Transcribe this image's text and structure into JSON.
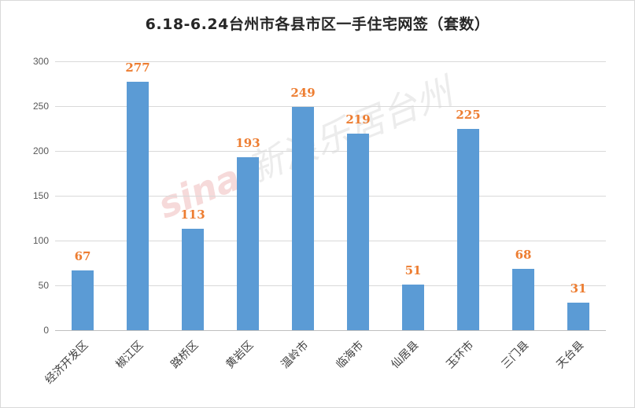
{
  "chart_data": {
    "type": "bar",
    "title": "6.18-6.24台州市各县市区一手住宅网签（套数）",
    "categories": [
      "经济开发区",
      "椒江区",
      "路桥区",
      "黄岩区",
      "温岭市",
      "临海市",
      "仙居县",
      "玉环市",
      "三门县",
      "天台县"
    ],
    "values": [
      67,
      277,
      113,
      193,
      249,
      219,
      51,
      225,
      68,
      31
    ],
    "xlabel": "",
    "ylabel": "",
    "ylim": [
      0,
      300
    ],
    "yticks": [
      0,
      50,
      100,
      150,
      200,
      250,
      300
    ],
    "grid": true,
    "legend": "none",
    "data_labels": true,
    "colors": {
      "bar": "#5b9bd5",
      "data_label": "#ed7d31"
    }
  },
  "watermark": {
    "brand": "sina",
    "text": "新浪乐居台州"
  }
}
